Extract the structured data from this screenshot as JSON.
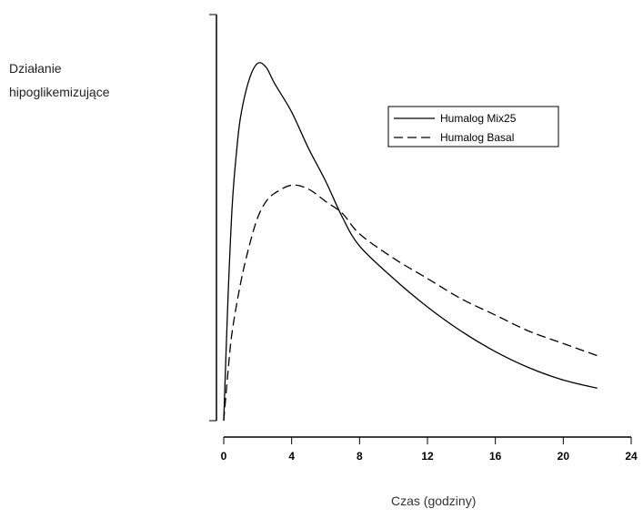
{
  "chart_data": {
    "type": "line",
    "title": "",
    "ylabel_lines": [
      "Działanie",
      "hipoglikemizujące"
    ],
    "xlabel": "Czas (godziny)",
    "xlim": [
      0,
      24
    ],
    "ylim": [
      0,
      1
    ],
    "xticks": [
      0,
      4,
      8,
      12,
      16,
      20,
      24
    ],
    "xtick_labels": [
      "0",
      "4",
      "8",
      "12",
      "16",
      "20",
      "24"
    ],
    "grid": false,
    "legend_position": "top-right",
    "series": [
      {
        "name": "Humalog Mix25",
        "style": "solid",
        "color": "#000000",
        "points": [
          [
            0,
            0
          ],
          [
            0.25,
            0.3
          ],
          [
            0.5,
            0.53
          ],
          [
            0.75,
            0.66
          ],
          [
            1,
            0.75
          ],
          [
            1.5,
            0.84
          ],
          [
            2,
            0.88
          ],
          [
            2.5,
            0.87
          ],
          [
            3,
            0.83
          ],
          [
            4,
            0.76
          ],
          [
            5,
            0.67
          ],
          [
            6,
            0.59
          ],
          [
            7,
            0.5
          ],
          [
            8,
            0.43
          ],
          [
            10,
            0.35
          ],
          [
            12,
            0.28
          ],
          [
            14,
            0.22
          ],
          [
            16,
            0.17
          ],
          [
            18,
            0.13
          ],
          [
            20,
            0.1
          ],
          [
            22,
            0.08
          ]
        ]
      },
      {
        "name": "Humalog Basal",
        "style": "dashed",
        "color": "#000000",
        "points": [
          [
            0,
            0
          ],
          [
            0.25,
            0.12
          ],
          [
            0.5,
            0.22
          ],
          [
            1,
            0.34
          ],
          [
            1.5,
            0.43
          ],
          [
            2,
            0.5
          ],
          [
            2.5,
            0.54
          ],
          [
            3,
            0.56
          ],
          [
            4,
            0.58
          ],
          [
            5,
            0.57
          ],
          [
            6,
            0.54
          ],
          [
            7,
            0.51
          ],
          [
            8,
            0.46
          ],
          [
            10,
            0.4
          ],
          [
            12,
            0.35
          ],
          [
            14,
            0.3
          ],
          [
            16,
            0.26
          ],
          [
            18,
            0.22
          ],
          [
            20,
            0.19
          ],
          [
            22,
            0.16
          ]
        ]
      }
    ]
  }
}
